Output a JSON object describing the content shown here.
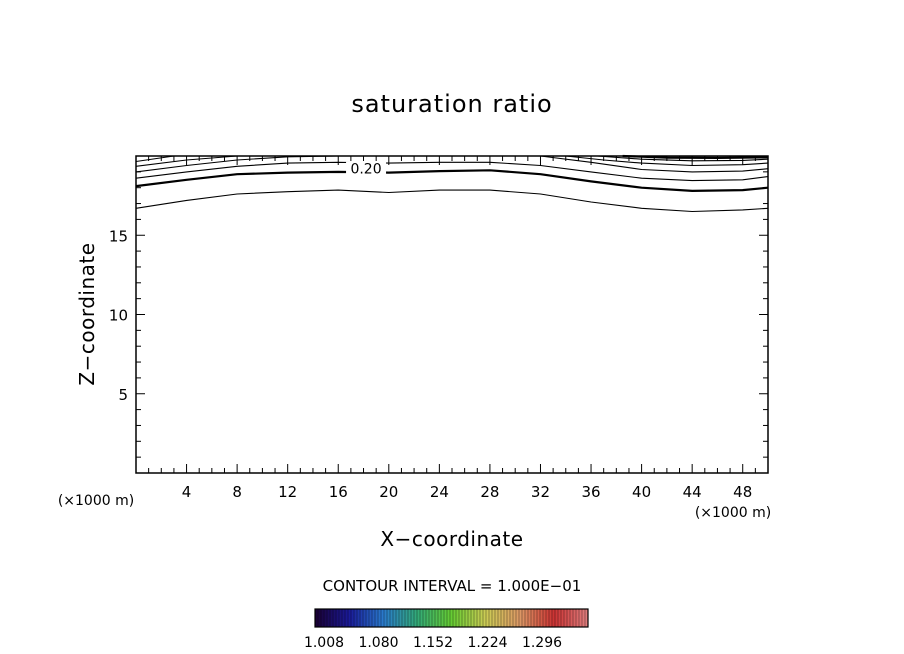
{
  "chart_data": {
    "type": "contour",
    "title": "saturation ratio",
    "xlabel": "X−coordinate",
    "ylabel": "Z−coordinate",
    "x_unit": "(×1000 m)",
    "y_unit": "(×1000 m)",
    "xlim": [
      0,
      50
    ],
    "ylim": [
      0,
      20
    ],
    "xticks": [
      4,
      8,
      12,
      16,
      20,
      24,
      28,
      32,
      36,
      40,
      44,
      48
    ],
    "yticks": [
      5,
      10,
      15
    ],
    "contour_interval_text": "CONTOUR INTERVAL = 1.000E−01",
    "contour_label": "0.20",
    "contours": [
      {
        "bold": false,
        "points": [
          [
            0,
            16.7
          ],
          [
            4,
            17.2
          ],
          [
            8,
            17.6
          ],
          [
            12,
            17.75
          ],
          [
            16,
            17.85
          ],
          [
            20,
            17.7
          ],
          [
            24,
            17.85
          ],
          [
            28,
            17.85
          ],
          [
            32,
            17.6
          ],
          [
            36,
            17.1
          ],
          [
            40,
            16.7
          ],
          [
            44,
            16.5
          ],
          [
            48,
            16.6
          ],
          [
            50,
            16.7
          ]
        ]
      },
      {
        "bold": true,
        "points": [
          [
            0,
            18.1
          ],
          [
            4,
            18.5
          ],
          [
            8,
            18.85
          ],
          [
            12,
            18.95
          ],
          [
            16,
            19.0
          ],
          [
            20,
            18.95
          ],
          [
            24,
            19.05
          ],
          [
            28,
            19.1
          ],
          [
            32,
            18.85
          ],
          [
            36,
            18.4
          ],
          [
            40,
            18.0
          ],
          [
            44,
            17.8
          ],
          [
            48,
            17.85
          ],
          [
            50,
            18.0
          ]
        ]
      },
      {
        "bold": false,
        "points": [
          [
            0,
            18.6
          ],
          [
            4,
            19.0
          ],
          [
            8,
            19.35
          ],
          [
            12,
            19.55
          ],
          [
            16,
            19.6
          ],
          [
            20,
            19.55
          ],
          [
            24,
            19.6
          ],
          [
            28,
            19.6
          ],
          [
            32,
            19.4
          ],
          [
            36,
            19.0
          ],
          [
            40,
            18.6
          ],
          [
            44,
            18.45
          ],
          [
            48,
            18.5
          ],
          [
            50,
            18.7
          ]
        ]
      },
      {
        "bold": false,
        "points": [
          [
            0,
            19.0
          ],
          [
            4,
            19.4
          ],
          [
            8,
            19.75
          ],
          [
            12,
            19.95
          ],
          [
            16,
            20.0
          ]
        ]
      },
      {
        "bold": false,
        "points": [
          [
            32,
            20.0
          ],
          [
            36,
            19.6
          ],
          [
            40,
            19.15
          ],
          [
            44,
            19.0
          ],
          [
            48,
            19.05
          ],
          [
            50,
            19.2
          ]
        ]
      },
      {
        "bold": false,
        "points": [
          [
            0,
            19.35
          ],
          [
            4,
            19.75
          ],
          [
            8,
            20.0
          ]
        ]
      },
      {
        "bold": false,
        "points": [
          [
            34,
            20.0
          ],
          [
            37,
            19.75
          ],
          [
            40,
            19.55
          ],
          [
            44,
            19.4
          ],
          [
            48,
            19.45
          ],
          [
            50,
            19.55
          ]
        ]
      },
      {
        "bold": false,
        "points": [
          [
            0,
            19.65
          ],
          [
            3,
            20.0
          ]
        ]
      },
      {
        "bold": false,
        "points": [
          [
            36.5,
            20.0
          ],
          [
            40,
            19.8
          ],
          [
            44,
            19.7
          ],
          [
            48,
            19.72
          ],
          [
            50,
            19.8
          ]
        ]
      },
      {
        "bold": true,
        "points": [
          [
            38.5,
            20.0
          ],
          [
            42,
            19.9
          ],
          [
            46,
            19.88
          ],
          [
            50,
            19.92
          ]
        ]
      }
    ],
    "colorbar": {
      "labels": [
        "1.008",
        "1.080",
        "1.152",
        "1.224",
        "1.296"
      ],
      "colors": [
        "#1a0033",
        "#1a1a99",
        "#2a7acc",
        "#33aa77",
        "#66cc33",
        "#cccc55",
        "#dd9966",
        "#cc3333",
        "#e08080"
      ]
    }
  }
}
